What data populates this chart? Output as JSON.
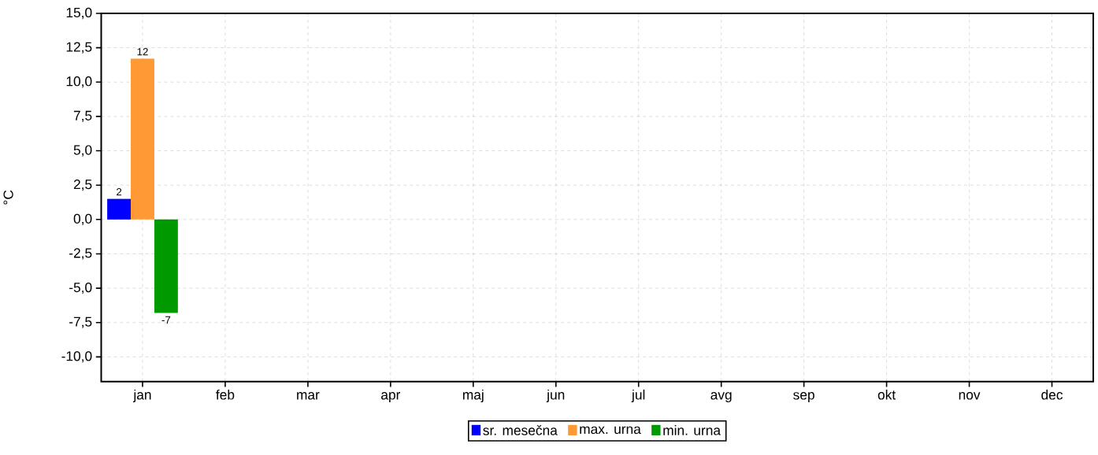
{
  "chart_data": {
    "type": "bar",
    "ylabel": "°C",
    "categories": [
      "jan",
      "feb",
      "mar",
      "apr",
      "maj",
      "jun",
      "jul",
      "avg",
      "sep",
      "okt",
      "nov",
      "dec"
    ],
    "series": [
      {
        "name": "sr. mesečna",
        "color": "#0000ff",
        "values": [
          1.5,
          null,
          null,
          null,
          null,
          null,
          null,
          null,
          null,
          null,
          null,
          null
        ],
        "value_labels": [
          "2",
          null,
          null,
          null,
          null,
          null,
          null,
          null,
          null,
          null,
          null,
          null
        ]
      },
      {
        "name": "max. urna",
        "color": "#ff9933",
        "values": [
          11.7,
          null,
          null,
          null,
          null,
          null,
          null,
          null,
          null,
          null,
          null,
          null
        ],
        "value_labels": [
          "12",
          null,
          null,
          null,
          null,
          null,
          null,
          null,
          null,
          null,
          null,
          null
        ]
      },
      {
        "name": "min. urna",
        "color": "#009900",
        "values": [
          -6.8,
          null,
          null,
          null,
          null,
          null,
          null,
          null,
          null,
          null,
          null,
          null
        ],
        "value_labels": [
          "-7",
          null,
          null,
          null,
          null,
          null,
          null,
          null,
          null,
          null,
          null,
          null
        ]
      }
    ],
    "ylim": [
      -11.8,
      15
    ],
    "yticks": [
      {
        "value": -10,
        "label": "-10,0"
      },
      {
        "value": -7.5,
        "label": "-7,5"
      },
      {
        "value": -5,
        "label": "-5,0"
      },
      {
        "value": -2.5,
        "label": "-2,5"
      },
      {
        "value": 0,
        "label": "0,0"
      },
      {
        "value": 2.5,
        "label": "2,5"
      },
      {
        "value": 5,
        "label": "5,0"
      },
      {
        "value": 7.5,
        "label": "7,5"
      },
      {
        "value": 10,
        "label": "10,0"
      },
      {
        "value": 12.5,
        "label": "12,5"
      },
      {
        "value": 15,
        "label": "15,0"
      }
    ],
    "grid": true,
    "legend": "bottom"
  }
}
